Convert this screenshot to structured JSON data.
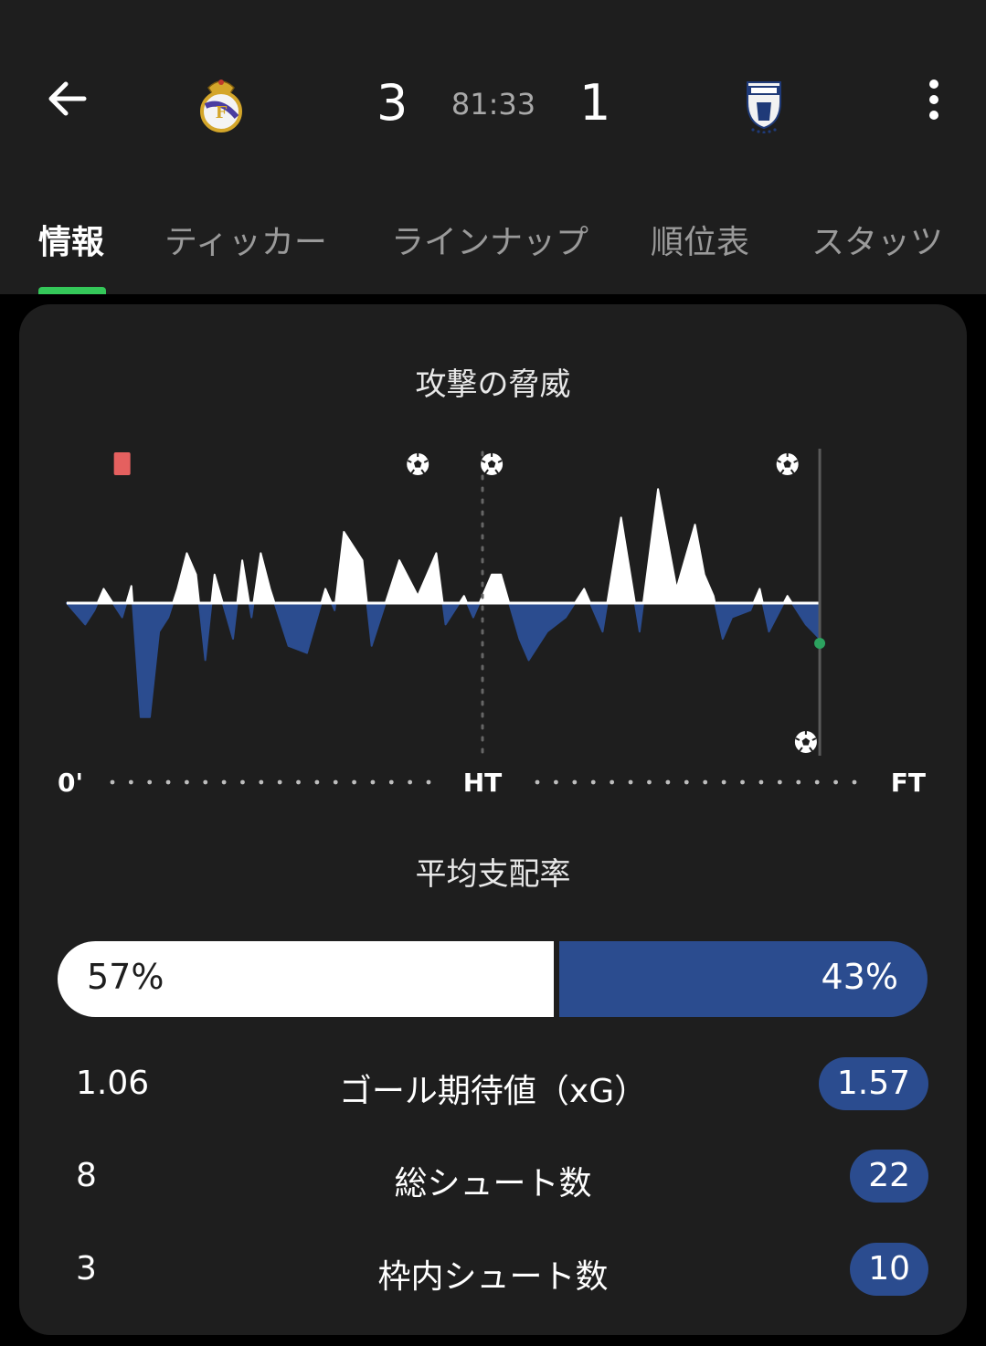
{
  "header": {
    "home_score": "3",
    "away_score": "1",
    "clock": "81:33",
    "home_crest_icon": "real-madrid-crest-icon",
    "away_crest_icon": "pachuca-crest-icon"
  },
  "tabs": [
    {
      "label": "情報",
      "active": true
    },
    {
      "label": "ティッカー",
      "active": false
    },
    {
      "label": "ラインナップ",
      "active": false
    },
    {
      "label": "順位表",
      "active": false
    },
    {
      "label": "スタッツ",
      "active": false
    }
  ],
  "momentum": {
    "title": "攻撃の脅威",
    "axis_start": "0'",
    "axis_mid": "HT",
    "axis_end": "FT",
    "current_minute": 81.5
  },
  "chart_data": {
    "type": "area",
    "x_unit": "minute",
    "x": [
      0,
      2,
      3,
      4,
      6,
      7,
      8,
      9,
      10,
      11,
      12,
      13,
      14,
      15,
      16,
      18,
      19,
      20,
      21,
      22,
      24,
      26,
      28,
      29,
      30,
      32,
      33,
      35,
      36,
      38,
      40,
      41,
      43,
      44,
      46,
      47,
      49,
      50,
      52,
      54,
      56,
      58,
      60,
      62,
      64,
      66,
      68,
      69,
      70,
      71,
      72,
      74,
      75,
      76,
      78,
      80,
      81.5
    ],
    "values": [
      0,
      -0.15,
      -0.05,
      0.1,
      -0.1,
      0.12,
      -0.8,
      -0.8,
      -0.2,
      -0.1,
      0.1,
      0.35,
      0.2,
      -0.4,
      0.2,
      -0.25,
      0.3,
      -0.1,
      0.35,
      0.1,
      -0.3,
      -0.35,
      0.1,
      -0.05,
      0.5,
      0.3,
      -0.3,
      0.1,
      0.3,
      0.05,
      0.35,
      -0.15,
      0.05,
      -0.1,
      0.2,
      0.2,
      -0.25,
      -0.4,
      -0.2,
      -0.1,
      0.1,
      -0.2,
      0.6,
      -0.2,
      0.8,
      0.1,
      0.55,
      0.2,
      0.05,
      -0.25,
      -0.1,
      -0.05,
      0.1,
      -0.2,
      0.05,
      -0.15,
      -0.25
    ],
    "events": [
      {
        "type": "red-card",
        "minute": 6
      },
      {
        "type": "goal",
        "team": "home",
        "minute": 38
      },
      {
        "type": "goal",
        "team": "home",
        "minute": 46
      },
      {
        "type": "goal",
        "team": "home",
        "minute": 78
      },
      {
        "type": "goal",
        "team": "away",
        "minute": 80
      }
    ],
    "home_color": "#ffffff",
    "away_color": "#2b4c8f"
  },
  "possession": {
    "title": "平均支配率",
    "home_pct": 57,
    "away_pct": 43,
    "home_label": "57%",
    "away_label": "43%"
  },
  "stats": [
    {
      "label": "ゴール期待値（xG）",
      "home": "1.06",
      "away": "1.57"
    },
    {
      "label": "総シュート数",
      "home": "8",
      "away": "22"
    },
    {
      "label": "枠内シュート数",
      "home": "3",
      "away": "10"
    }
  ]
}
